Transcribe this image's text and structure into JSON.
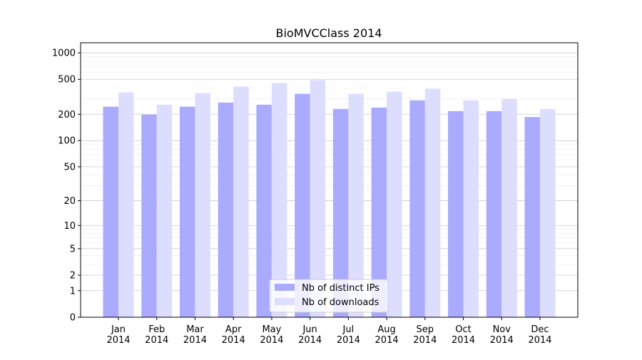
{
  "chart_data": {
    "type": "bar",
    "title": "BioMVCClass 2014",
    "xlabel": "",
    "ylabel": "",
    "yscale": "log10(1+y)",
    "ylim": [
      0,
      1300
    ],
    "yticks": [
      0,
      1,
      2,
      5,
      10,
      20,
      50,
      100,
      200,
      500,
      1000
    ],
    "grid": true,
    "legend_position": "bottom-center",
    "categories": [
      "Jan\n2014",
      "Feb\n2014",
      "Mar\n2014",
      "Apr\n2014",
      "May\n2014",
      "Jun\n2014",
      "Jul\n2014",
      "Aug\n2014",
      "Sep\n2014",
      "Oct\n2014",
      "Nov\n2014",
      "Dec\n2014"
    ],
    "series": [
      {
        "name": "Nb of distinct IPs",
        "color": "#aaaaff",
        "values": [
          244,
          198,
          244,
          272,
          257,
          342,
          230,
          238,
          288,
          217,
          217,
          186
        ]
      },
      {
        "name": "Nb of downloads",
        "color": "#ddddff",
        "values": [
          355,
          257,
          348,
          413,
          453,
          489,
          342,
          361,
          390,
          288,
          299,
          230
        ]
      }
    ]
  }
}
